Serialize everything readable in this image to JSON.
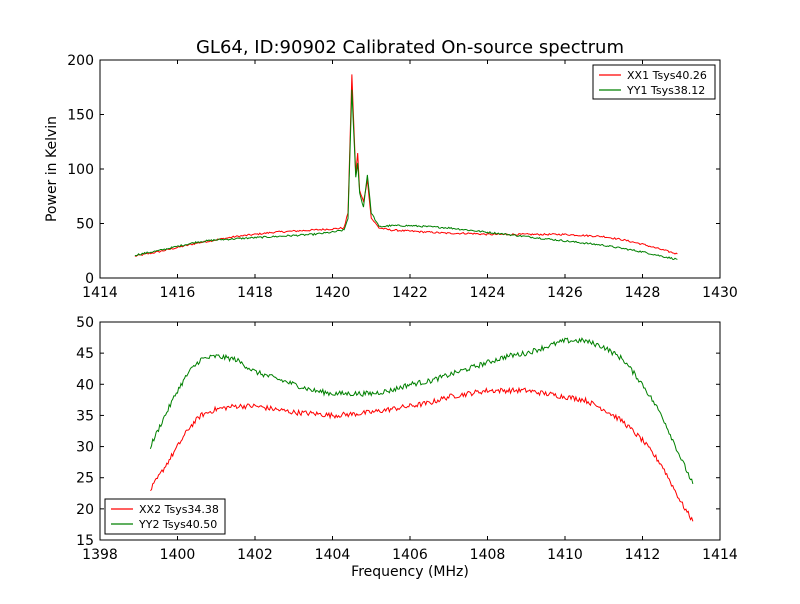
{
  "chart_data": [
    {
      "type": "line",
      "title": "GL64, ID:90902 Calibrated On-source spectrum",
      "xlabel": "",
      "ylabel": "Power in Kelvin",
      "xlim": [
        1414,
        1430
      ],
      "ylim": [
        0,
        200
      ],
      "xticks": [
        1414,
        1416,
        1418,
        1420,
        1422,
        1424,
        1426,
        1428,
        1430
      ],
      "yticks": [
        0,
        50,
        100,
        150,
        200
      ],
      "grid": false,
      "legend_position": "top-right",
      "series": [
        {
          "name": "XX1 Tsys40.26",
          "color": "#ff0000",
          "points": [
            [
              1414.9,
              20
            ],
            [
              1415.5,
              24
            ],
            [
              1416.0,
              28
            ],
            [
              1416.5,
              32
            ],
            [
              1417.0,
              35
            ],
            [
              1417.5,
              38
            ],
            [
              1418.0,
              40
            ],
            [
              1418.5,
              42
            ],
            [
              1419.0,
              43
            ],
            [
              1419.5,
              44
            ],
            [
              1420.0,
              45
            ],
            [
              1420.3,
              46
            ],
            [
              1420.4,
              60
            ],
            [
              1420.5,
              186
            ],
            [
              1420.6,
              95
            ],
            [
              1420.65,
              115
            ],
            [
              1420.7,
              80
            ],
            [
              1420.8,
              70
            ],
            [
              1420.9,
              90
            ],
            [
              1421.0,
              55
            ],
            [
              1421.2,
              46
            ],
            [
              1421.5,
              44
            ],
            [
              1422.0,
              43
            ],
            [
              1422.5,
              42
            ],
            [
              1423.0,
              41
            ],
            [
              1423.5,
              41
            ],
            [
              1424.0,
              40
            ],
            [
              1424.5,
              40
            ],
            [
              1425.0,
              40
            ],
            [
              1425.5,
              40
            ],
            [
              1426.0,
              40
            ],
            [
              1426.5,
              39
            ],
            [
              1427.0,
              38
            ],
            [
              1427.5,
              35
            ],
            [
              1428.0,
              31
            ],
            [
              1428.5,
              26
            ],
            [
              1428.9,
              22
            ]
          ]
        },
        {
          "name": "YY1 Tsys38.12",
          "color": "#008000",
          "points": [
            [
              1414.9,
              21
            ],
            [
              1415.5,
              25
            ],
            [
              1416.0,
              29
            ],
            [
              1416.5,
              33
            ],
            [
              1417.0,
              35
            ],
            [
              1417.5,
              36
            ],
            [
              1418.0,
              37
            ],
            [
              1418.5,
              38
            ],
            [
              1419.0,
              39
            ],
            [
              1419.5,
              40
            ],
            [
              1420.0,
              42
            ],
            [
              1420.3,
              44
            ],
            [
              1420.4,
              55
            ],
            [
              1420.5,
              172
            ],
            [
              1420.6,
              92
            ],
            [
              1420.65,
              106
            ],
            [
              1420.7,
              78
            ],
            [
              1420.8,
              65
            ],
            [
              1420.9,
              95
            ],
            [
              1421.0,
              60
            ],
            [
              1421.2,
              47
            ],
            [
              1421.5,
              48
            ],
            [
              1422.0,
              48
            ],
            [
              1422.5,
              47
            ],
            [
              1423.0,
              46
            ],
            [
              1423.5,
              44
            ],
            [
              1424.0,
              42
            ],
            [
              1424.5,
              40
            ],
            [
              1425.0,
              38
            ],
            [
              1425.5,
              36
            ],
            [
              1426.0,
              34
            ],
            [
              1426.5,
              32
            ],
            [
              1427.0,
              30
            ],
            [
              1427.5,
              27
            ],
            [
              1428.0,
              24
            ],
            [
              1428.5,
              20
            ],
            [
              1428.9,
              17
            ]
          ]
        }
      ]
    },
    {
      "type": "line",
      "title": "",
      "xlabel": "Frequency (MHz)",
      "ylabel": "",
      "xlim": [
        1398,
        1414
      ],
      "ylim": [
        15,
        50
      ],
      "xticks": [
        1398,
        1400,
        1402,
        1404,
        1406,
        1408,
        1410,
        1412,
        1414
      ],
      "yticks": [
        15,
        20,
        25,
        30,
        35,
        40,
        45,
        50
      ],
      "grid": false,
      "legend_position": "bottom-left",
      "series": [
        {
          "name": "XX2 Tsys34.38",
          "color": "#ff0000",
          "points": [
            [
              1399.3,
              23
            ],
            [
              1399.6,
              26
            ],
            [
              1400.0,
              30
            ],
            [
              1400.3,
              33
            ],
            [
              1400.6,
              35
            ],
            [
              1401.0,
              36
            ],
            [
              1401.5,
              36.5
            ],
            [
              1402.0,
              36.5
            ],
            [
              1402.5,
              36
            ],
            [
              1403.0,
              35.5
            ],
            [
              1403.5,
              35.3
            ],
            [
              1404.0,
              35
            ],
            [
              1404.5,
              35.2
            ],
            [
              1405.0,
              35.5
            ],
            [
              1405.5,
              36
            ],
            [
              1406.0,
              36.5
            ],
            [
              1406.5,
              37
            ],
            [
              1407.0,
              38
            ],
            [
              1407.5,
              38.5
            ],
            [
              1408.0,
              39
            ],
            [
              1408.5,
              39
            ],
            [
              1409.0,
              39
            ],
            [
              1409.5,
              38.5
            ],
            [
              1410.0,
              38
            ],
            [
              1410.5,
              37.5
            ],
            [
              1411.0,
              36
            ],
            [
              1411.5,
              34
            ],
            [
              1412.0,
              31
            ],
            [
              1412.5,
              27
            ],
            [
              1413.0,
              21
            ],
            [
              1413.3,
              18
            ]
          ]
        },
        {
          "name": "YY2 Tsys40.50",
          "color": "#008000",
          "points": [
            [
              1399.3,
              30
            ],
            [
              1399.6,
              34
            ],
            [
              1400.0,
              39
            ],
            [
              1400.3,
              42
            ],
            [
              1400.6,
              44
            ],
            [
              1401.0,
              44.5
            ],
            [
              1401.5,
              44
            ],
            [
              1402.0,
              42
            ],
            [
              1402.5,
              41
            ],
            [
              1403.0,
              40
            ],
            [
              1403.5,
              39
            ],
            [
              1404.0,
              38.5
            ],
            [
              1404.5,
              38.5
            ],
            [
              1405.0,
              38.5
            ],
            [
              1405.5,
              39
            ],
            [
              1406.0,
              40
            ],
            [
              1406.5,
              40.5
            ],
            [
              1407.0,
              41.5
            ],
            [
              1407.5,
              42.5
            ],
            [
              1408.0,
              43.5
            ],
            [
              1408.5,
              44.5
            ],
            [
              1409.0,
              45
            ],
            [
              1409.5,
              46
            ],
            [
              1410.0,
              47
            ],
            [
              1410.5,
              47
            ],
            [
              1411.0,
              46
            ],
            [
              1411.5,
              44
            ],
            [
              1412.0,
              40
            ],
            [
              1412.5,
              35
            ],
            [
              1413.0,
              28
            ],
            [
              1413.3,
              24
            ]
          ]
        }
      ]
    }
  ]
}
